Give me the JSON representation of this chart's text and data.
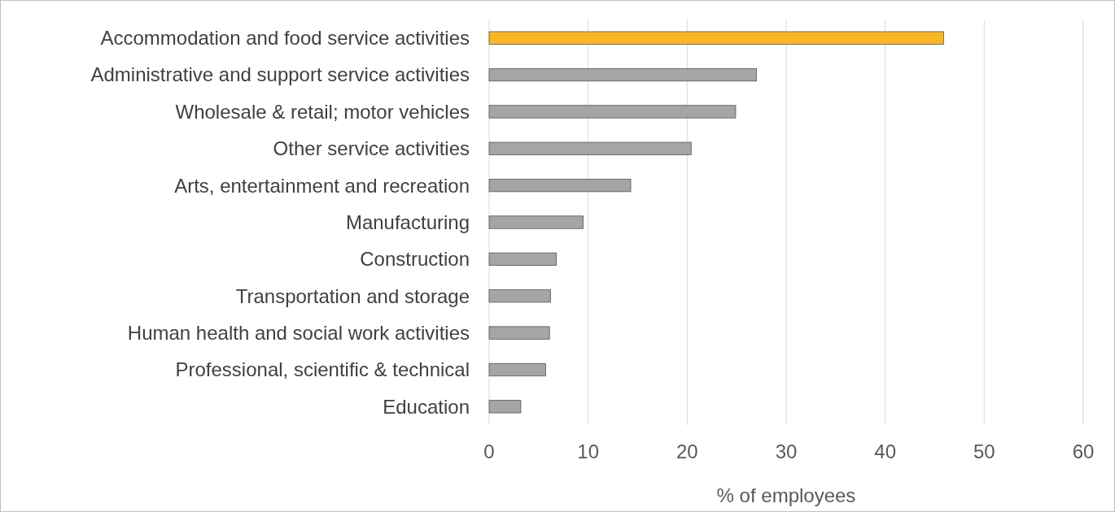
{
  "chart_data": {
    "type": "bar",
    "orientation": "horizontal",
    "xlabel": "% of employees",
    "categories": [
      "Accommodation and food service activities",
      "Administrative and support service activities",
      "Wholesale & retail; motor vehicles",
      "Other service activities",
      "Arts, entertainment and recreation",
      "Manufacturing",
      "Construction",
      "Transportation and storage",
      "Human health and social work activities",
      "Professional, scientific & technical",
      "Education"
    ],
    "values": [
      45.9,
      27.0,
      24.9,
      20.4,
      14.3,
      9.5,
      6.8,
      6.2,
      6.1,
      5.7,
      3.2
    ],
    "colors": [
      "#f9b625",
      "#a5a5a5",
      "#a5a5a5",
      "#a5a5a5",
      "#a5a5a5",
      "#a5a5a5",
      "#a5a5a5",
      "#a5a5a5",
      "#a5a5a5",
      "#a5a5a5",
      "#a5a5a5"
    ],
    "xlim": [
      0,
      60
    ],
    "xticks": [
      0,
      10,
      20,
      30,
      40,
      50,
      60
    ],
    "grid": "x"
  }
}
